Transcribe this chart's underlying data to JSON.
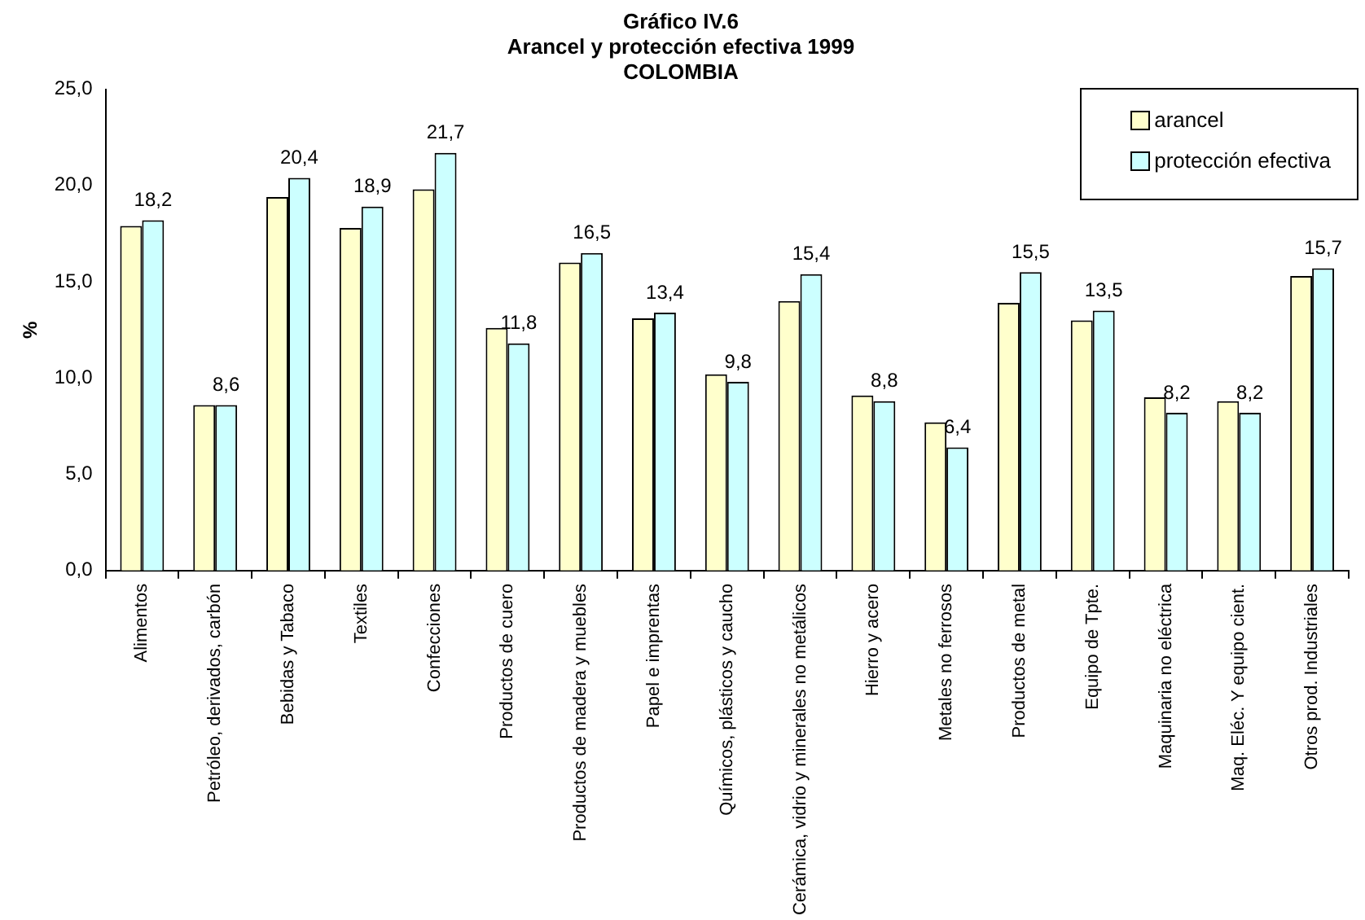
{
  "chart_data": {
    "type": "bar",
    "title": [
      "Gráfico IV.6",
      "Arancel y protección efectiva 1999",
      "COLOMBIA"
    ],
    "ylabel": "%",
    "categories": [
      "Alimentos",
      "Petróleo, derivados, carbón",
      "Bebidas y Tabaco",
      "Textiles",
      "Confecciones",
      "Productos de cuero",
      "Productos de madera y muebles",
      "Papel e imprentas",
      "Químicos, plásticos y caucho",
      "Cerámica, vidrio y minerales no metálicos",
      "Hierro y acero",
      "Metales no ferrosos",
      "Productos de metal",
      "Equipo de Tpte.",
      "Maquinaria no eléctrica",
      "Maq. Eléc. Y equipo cient.",
      "Otros prod. Industriales"
    ],
    "series": [
      {
        "name": "arancel",
        "color": "#ffffcc",
        "values": [
          17.9,
          8.6,
          19.4,
          17.8,
          19.8,
          12.6,
          16.0,
          13.1,
          10.2,
          14.0,
          9.1,
          7.7,
          13.9,
          13.0,
          9.0,
          8.8,
          15.3
        ]
      },
      {
        "name": "protección efectiva",
        "color": "#ccffff",
        "values": [
          18.2,
          8.6,
          20.4,
          18.9,
          21.7,
          11.8,
          16.5,
          13.4,
          9.8,
          15.4,
          8.8,
          6.4,
          15.5,
          13.5,
          8.2,
          8.2,
          15.7
        ],
        "value_labels": [
          "18,2",
          "8,6",
          "20,4",
          "18,9",
          "21,7",
          "11,8",
          "16,5",
          "13,4",
          "9,8",
          "15,4",
          "8,8",
          "6,4",
          "15,5",
          "13,5",
          "8,2",
          "8,2",
          "15,7"
        ]
      }
    ],
    "ylim": [
      0,
      25
    ],
    "yticks": [
      {
        "value": 0,
        "label": "0,0"
      },
      {
        "value": 5,
        "label": "5,0"
      },
      {
        "value": 10,
        "label": "10,0"
      },
      {
        "value": 15,
        "label": "15,0"
      },
      {
        "value": 20,
        "label": "20,0"
      },
      {
        "value": 25,
        "label": "25,0"
      }
    ],
    "grid": false,
    "legend": "top right"
  }
}
